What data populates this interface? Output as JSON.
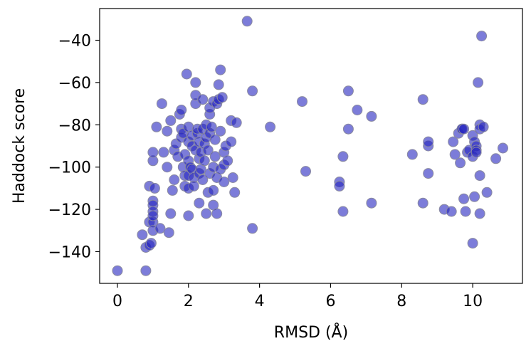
{
  "chart_data": {
    "type": "scatter",
    "title": "",
    "xlabel": "RMSD (Å)",
    "ylabel": "Haddock score",
    "xlim": [
      -0.5,
      11.4
    ],
    "ylim": [
      -155,
      -25
    ],
    "xticks": [
      0,
      2,
      4,
      6,
      8,
      10
    ],
    "yticks": [
      -140,
      -120,
      -100,
      -80,
      -60,
      -40
    ],
    "xtick_labels": [
      "0",
      "2",
      "4",
      "6",
      "8",
      "10"
    ],
    "ytick_labels": [
      "−140",
      "−120",
      "−100",
      "−80",
      "−60",
      "−40"
    ],
    "grid": false,
    "marker_color": "#2525c0",
    "marker_edge_color": "#8a8aa0",
    "series": [
      {
        "name": "",
        "points": [
          [
            0.0,
            -149
          ],
          [
            0.8,
            -149
          ],
          [
            0.7,
            -132
          ],
          [
            0.8,
            -138
          ],
          [
            0.9,
            -137
          ],
          [
            0.95,
            -136
          ],
          [
            0.9,
            -126
          ],
          [
            1.0,
            -126
          ],
          [
            1.0,
            -130
          ],
          [
            1.2,
            -129
          ],
          [
            0.9,
            -109
          ],
          [
            1.0,
            -116
          ],
          [
            1.0,
            -118
          ],
          [
            1.0,
            -121
          ],
          [
            1.0,
            -123
          ],
          [
            1.05,
            -110
          ],
          [
            1.0,
            -97
          ],
          [
            1.0,
            -93
          ],
          [
            1.1,
            -81
          ],
          [
            1.25,
            -70
          ],
          [
            1.3,
            -93
          ],
          [
            1.4,
            -83
          ],
          [
            1.4,
            -100
          ],
          [
            1.45,
            -131
          ],
          [
            1.5,
            -122
          ],
          [
            1.5,
            -78
          ],
          [
            1.55,
            -111
          ],
          [
            1.6,
            -106
          ],
          [
            1.6,
            -92
          ],
          [
            1.65,
            -89
          ],
          [
            1.7,
            -95
          ],
          [
            1.75,
            -75
          ],
          [
            1.8,
            -73
          ],
          [
            1.8,
            -82
          ],
          [
            1.8,
            -86
          ],
          [
            1.85,
            -84
          ],
          [
            1.85,
            -100
          ],
          [
            1.9,
            -104
          ],
          [
            1.9,
            -109
          ],
          [
            1.9,
            -94
          ],
          [
            1.95,
            -56
          ],
          [
            2.0,
            -81
          ],
          [
            2.0,
            -88
          ],
          [
            2.0,
            -97
          ],
          [
            2.0,
            -104
          ],
          [
            2.0,
            -110
          ],
          [
            2.0,
            -123
          ],
          [
            2.05,
            -100
          ],
          [
            2.1,
            -90
          ],
          [
            2.1,
            -85
          ],
          [
            2.1,
            -101
          ],
          [
            2.15,
            -105
          ],
          [
            2.15,
            -109
          ],
          [
            2.2,
            -92
          ],
          [
            2.2,
            -70
          ],
          [
            2.2,
            -66
          ],
          [
            2.2,
            -60
          ],
          [
            2.25,
            -84
          ],
          [
            2.25,
            -82
          ],
          [
            2.3,
            -88
          ],
          [
            2.3,
            -96
          ],
          [
            2.3,
            -103
          ],
          [
            2.3,
            -117
          ],
          [
            2.35,
            -93
          ],
          [
            2.35,
            -101
          ],
          [
            2.4,
            -106
          ],
          [
            2.4,
            -68
          ],
          [
            2.4,
            -82
          ],
          [
            2.45,
            -89
          ],
          [
            2.45,
            -97
          ],
          [
            2.5,
            -80
          ],
          [
            2.5,
            -86
          ],
          [
            2.5,
            -122
          ],
          [
            2.55,
            -112
          ],
          [
            2.55,
            -92
          ],
          [
            2.6,
            -84
          ],
          [
            2.6,
            -103
          ],
          [
            2.6,
            -75
          ],
          [
            2.6,
            -72
          ],
          [
            2.65,
            -81
          ],
          [
            2.7,
            -69
          ],
          [
            2.7,
            -100
          ],
          [
            2.7,
            -111
          ],
          [
            2.7,
            -118
          ],
          [
            2.75,
            -87
          ],
          [
            2.75,
            -95
          ],
          [
            2.8,
            -70
          ],
          [
            2.8,
            -105
          ],
          [
            2.8,
            -122
          ],
          [
            2.85,
            -68
          ],
          [
            2.85,
            -61
          ],
          [
            2.9,
            -54
          ],
          [
            2.9,
            -83
          ],
          [
            2.9,
            -101
          ],
          [
            2.95,
            -67
          ],
          [
            3.0,
            -93
          ],
          [
            3.0,
            -107
          ],
          [
            3.0,
            -99
          ],
          [
            3.05,
            -90
          ],
          [
            3.1,
            -97
          ],
          [
            3.2,
            -88
          ],
          [
            3.2,
            -78
          ],
          [
            3.25,
            -105
          ],
          [
            3.3,
            -112
          ],
          [
            3.35,
            -79
          ],
          [
            3.65,
            -31
          ],
          [
            3.8,
            -64
          ],
          [
            3.8,
            -129
          ],
          [
            4.3,
            -81
          ],
          [
            5.2,
            -69
          ],
          [
            5.3,
            -102
          ],
          [
            6.25,
            -107
          ],
          [
            6.25,
            -109
          ],
          [
            6.35,
            -95
          ],
          [
            6.35,
            -121
          ],
          [
            6.5,
            -82
          ],
          [
            6.5,
            -64
          ],
          [
            6.75,
            -73
          ],
          [
            7.15,
            -76
          ],
          [
            7.15,
            -117
          ],
          [
            8.3,
            -94
          ],
          [
            8.6,
            -68
          ],
          [
            8.6,
            -117
          ],
          [
            8.75,
            -90
          ],
          [
            8.75,
            -88
          ],
          [
            8.75,
            -103
          ],
          [
            9.2,
            -120
          ],
          [
            9.4,
            -121
          ],
          [
            9.45,
            -88
          ],
          [
            9.5,
            -94
          ],
          [
            9.6,
            -84
          ],
          [
            9.65,
            -98
          ],
          [
            9.7,
            -82
          ],
          [
            9.7,
            -82
          ],
          [
            9.75,
            -82
          ],
          [
            9.75,
            -115
          ],
          [
            9.8,
            -121
          ],
          [
            9.85,
            -93
          ],
          [
            9.9,
            -92
          ],
          [
            10.0,
            -136
          ],
          [
            10.0,
            -85
          ],
          [
            10.0,
            -95
          ],
          [
            10.05,
            -88
          ],
          [
            10.05,
            -114
          ],
          [
            10.1,
            -90
          ],
          [
            10.1,
            -92
          ],
          [
            10.1,
            -93
          ],
          [
            10.15,
            -60
          ],
          [
            10.2,
            -80
          ],
          [
            10.2,
            -82
          ],
          [
            10.2,
            -104
          ],
          [
            10.2,
            -122
          ],
          [
            10.25,
            -38
          ],
          [
            10.3,
            -81
          ],
          [
            10.4,
            -112
          ],
          [
            10.65,
            -96
          ],
          [
            10.85,
            -91
          ]
        ]
      }
    ]
  }
}
